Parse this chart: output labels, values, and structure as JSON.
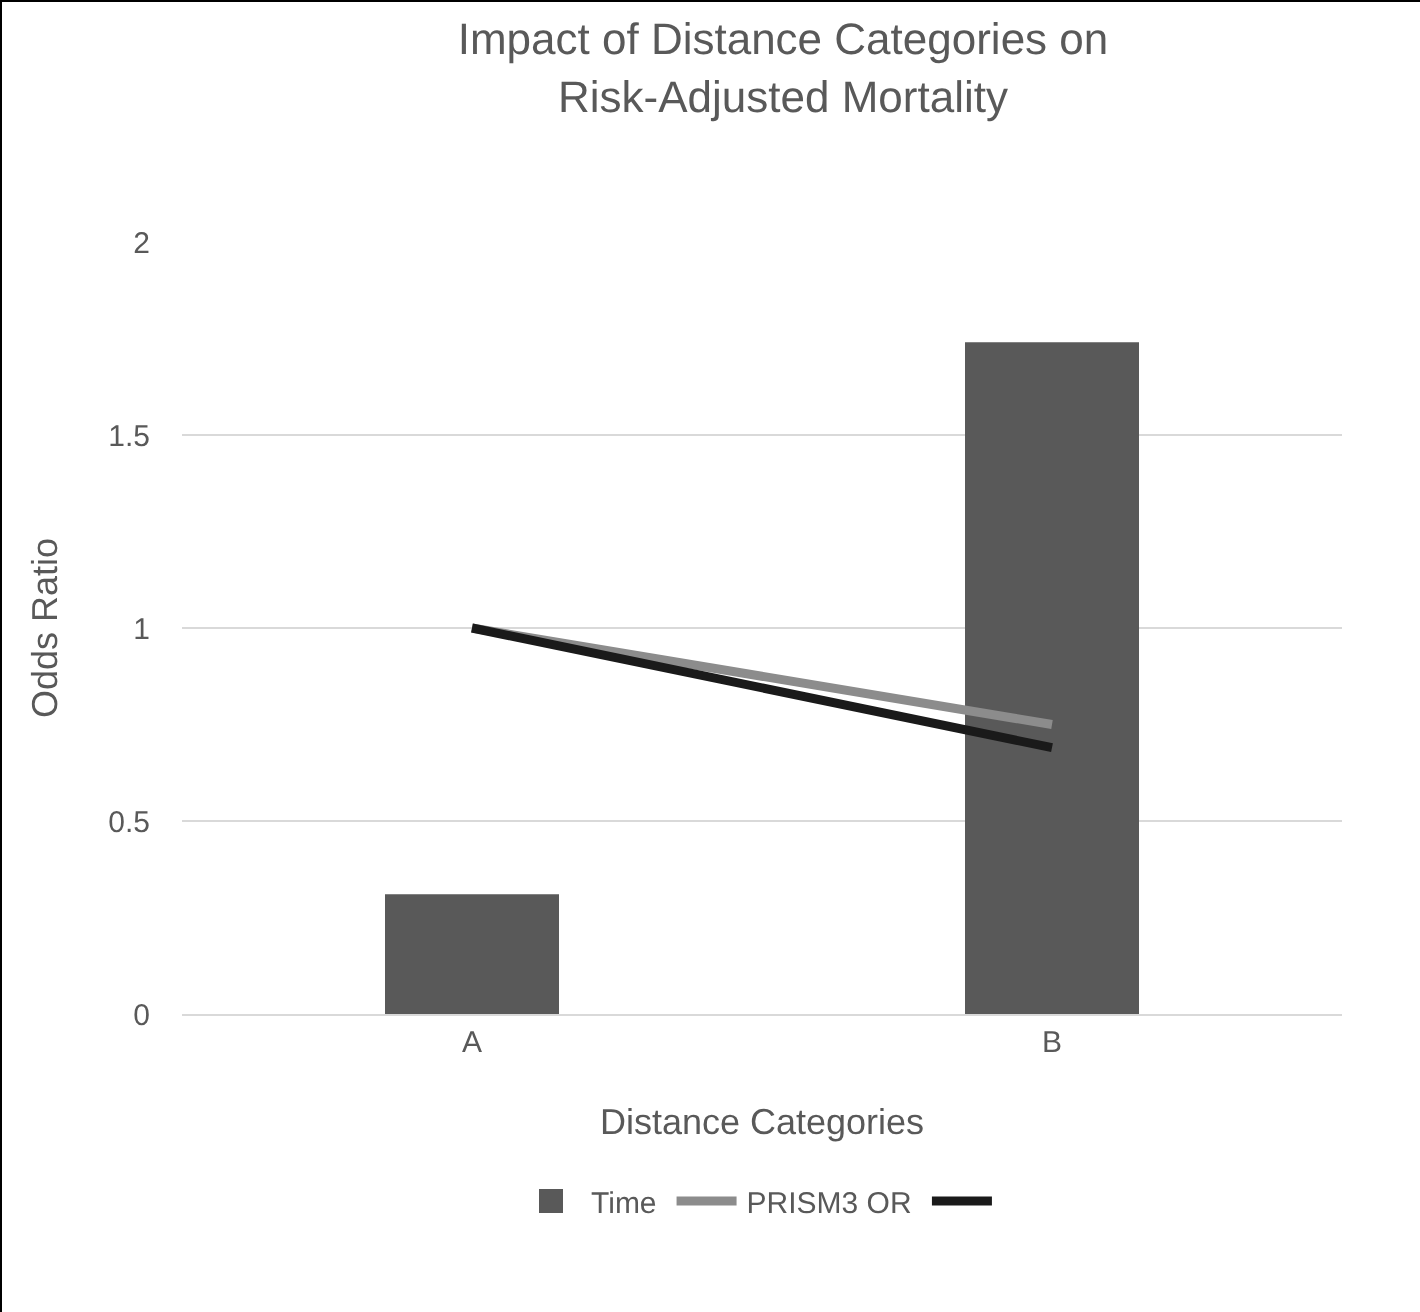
{
  "chart_data": {
    "type": "bar",
    "title": "Impact of Distance Categories on\nRisk-Adjusted Mortality",
    "xlabel": "Distance Categories",
    "ylabel": "Odds Ratio",
    "categories": [
      "A",
      "B"
    ],
    "series": [
      {
        "name": "Time",
        "color": "#595959",
        "values": [
          0.31,
          1.74
        ]
      },
      {
        "name": "PRISM3 OR",
        "type": "line",
        "color": "#8c8c8c",
        "values": [
          1.0,
          0.75
        ]
      },
      {
        "type": "line",
        "color": "#1a1a1a",
        "values": [
          1.0,
          0.69
        ]
      }
    ],
    "ylim": [
      0,
      2
    ],
    "yticks": [
      0,
      0.5,
      1,
      1.5,
      2
    ],
    "grid": "y",
    "legend": "bottom",
    "marker": "none",
    "line_style": "solid"
  }
}
